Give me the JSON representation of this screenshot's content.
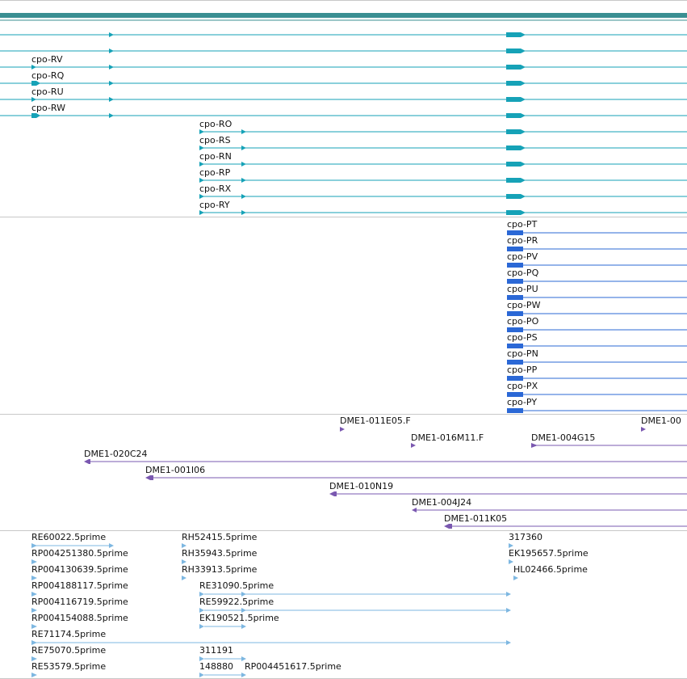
{
  "colors": {
    "gene_bar": "#3a8f92",
    "transcript": "#16a2b7",
    "protein": "#2b68d6",
    "clone": "#7a58b0",
    "est": "#7db7e1",
    "divider": "#c8c8c8"
  },
  "transcripts": [
    {
      "label": ""
    },
    {
      "label": ""
    },
    {
      "label": "cpo-RV"
    },
    {
      "label": "cpo-RQ"
    },
    {
      "label": "cpo-RU"
    },
    {
      "label": "cpo-RW"
    },
    {
      "label": "cpo-RO"
    },
    {
      "label": "cpo-RS"
    },
    {
      "label": "cpo-RN"
    },
    {
      "label": "cpo-RP"
    },
    {
      "label": "cpo-RX"
    },
    {
      "label": "cpo-RY"
    }
  ],
  "proteins": [
    {
      "label": "cpo-PT"
    },
    {
      "label": "cpo-PR"
    },
    {
      "label": "cpo-PV"
    },
    {
      "label": "cpo-PQ"
    },
    {
      "label": "cpo-PU"
    },
    {
      "label": "cpo-PW"
    },
    {
      "label": "cpo-PO"
    },
    {
      "label": "cpo-PS"
    },
    {
      "label": "cpo-PN"
    },
    {
      "label": "cpo-PP"
    },
    {
      "label": "cpo-PX"
    },
    {
      "label": "cpo-PY"
    }
  ],
  "clones": [
    {
      "label": "DME1-011E05.F"
    },
    {
      "label": "DME1-00"
    },
    {
      "label": "DME1-016M11.F"
    },
    {
      "label": "DME1-004G15"
    },
    {
      "label": "DME1-020C24"
    },
    {
      "label": "DME1-001I06"
    },
    {
      "label": "DME1-010N19"
    },
    {
      "label": "DME1-004J24"
    },
    {
      "label": "DME1-011K05"
    }
  ],
  "ests": [
    {
      "label": "RE60022.5prime"
    },
    {
      "label": "RP004251380.5prime"
    },
    {
      "label": "RP004130639.5prime"
    },
    {
      "label": "RP004188117.5prime"
    },
    {
      "label": "RP004116719.5prime"
    },
    {
      "label": "RP004154088.5prime"
    },
    {
      "label": "RE71174.5prime"
    },
    {
      "label": "RE75070.5prime"
    },
    {
      "label": "RE53579.5prime"
    },
    {
      "label": "RH52415.5prime"
    },
    {
      "label": "RH35943.5prime"
    },
    {
      "label": "RH33913.5prime"
    },
    {
      "label": "RE31090.5prime"
    },
    {
      "label": "RE59922.5prime"
    },
    {
      "label": "EK190521.5prime"
    },
    {
      "label": "311191"
    },
    {
      "label": "148880"
    },
    {
      "label": "RP004451617.5prime"
    },
    {
      "label": "317360"
    },
    {
      "label": "EK195657.5prime"
    },
    {
      "label": "HL02466.5prime"
    }
  ]
}
